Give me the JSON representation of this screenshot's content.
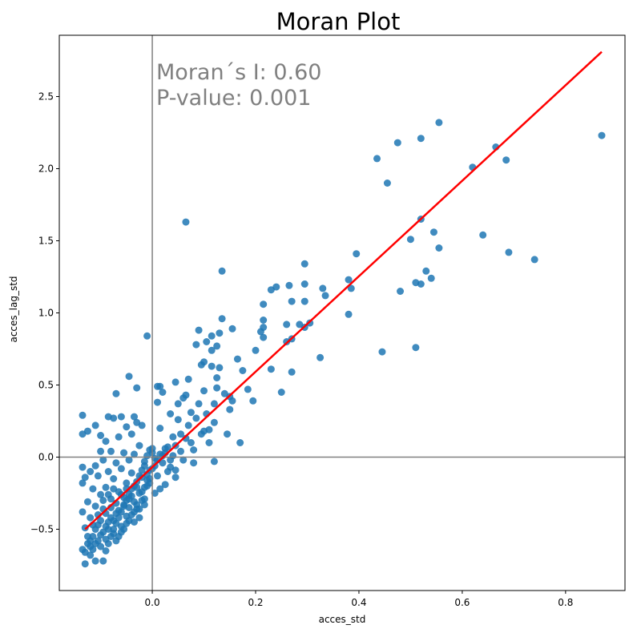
{
  "chart_data": {
    "type": "scatter",
    "title": "Moran Plot",
    "xlabel": "acces_std",
    "ylabel": "acces_lag_std",
    "xlim": [
      -0.18,
      0.915
    ],
    "ylim": [
      -0.925,
      2.925
    ],
    "xticks": [
      0.0,
      0.2,
      0.4,
      0.6,
      0.8
    ],
    "xtick_labels": [
      "0.0",
      "0.2",
      "0.4",
      "0.6",
      "0.8"
    ],
    "yticks": [
      -0.5,
      0.0,
      0.5,
      1.0,
      1.5,
      2.0,
      2.5
    ],
    "ytick_labels": [
      "−0.5",
      "0.0",
      "0.5",
      "1.0",
      "1.5",
      "2.0",
      "2.5"
    ],
    "reference_lines": {
      "vertical_x": 0.0,
      "horizontal_y": 0.0,
      "color": "#808080"
    },
    "annotations": [
      "Moran´s I: 0.60",
      "P-value: 0.001"
    ],
    "regression_line": {
      "x": [
        -0.13,
        0.87
      ],
      "y": [
        -0.5,
        2.81
      ],
      "color": "#ff0000"
    },
    "point_color": "#1f77b4",
    "points": [
      [
        0.87,
        2.23
      ],
      [
        0.74,
        1.37
      ],
      [
        0.69,
        1.42
      ],
      [
        0.685,
        2.06
      ],
      [
        0.665,
        2.15
      ],
      [
        0.64,
        1.54
      ],
      [
        0.62,
        2.01
      ],
      [
        0.555,
        2.32
      ],
      [
        0.555,
        1.45
      ],
      [
        0.545,
        1.56
      ],
      [
        0.54,
        1.24
      ],
      [
        0.53,
        1.29
      ],
      [
        0.52,
        2.21
      ],
      [
        0.52,
        1.65
      ],
      [
        0.52,
        1.2
      ],
      [
        0.51,
        1.21
      ],
      [
        0.51,
        0.76
      ],
      [
        0.5,
        1.51
      ],
      [
        0.48,
        1.15
      ],
      [
        0.475,
        2.18
      ],
      [
        0.455,
        1.9
      ],
      [
        0.445,
        0.73
      ],
      [
        0.435,
        2.07
      ],
      [
        0.395,
        1.41
      ],
      [
        0.385,
        1.17
      ],
      [
        0.38,
        1.23
      ],
      [
        0.38,
        0.99
      ],
      [
        0.335,
        1.12
      ],
      [
        0.33,
        1.17
      ],
      [
        0.325,
        0.69
      ],
      [
        0.305,
        0.93
      ],
      [
        0.295,
        1.34
      ],
      [
        0.295,
        1.2
      ],
      [
        0.295,
        1.08
      ],
      [
        0.295,
        0.9
      ],
      [
        0.285,
        0.92
      ],
      [
        0.27,
        1.08
      ],
      [
        0.27,
        0.82
      ],
      [
        0.27,
        0.59
      ],
      [
        0.265,
        1.19
      ],
      [
        0.26,
        0.92
      ],
      [
        0.26,
        0.8
      ],
      [
        0.25,
        0.45
      ],
      [
        0.24,
        1.18
      ],
      [
        0.23,
        1.16
      ],
      [
        0.23,
        0.61
      ],
      [
        0.215,
        1.06
      ],
      [
        0.215,
        0.95
      ],
      [
        0.215,
        0.9
      ],
      [
        0.215,
        0.83
      ],
      [
        0.21,
        0.87
      ],
      [
        0.2,
        0.74
      ],
      [
        0.195,
        0.39
      ],
      [
        0.185,
        0.47
      ],
      [
        0.175,
        0.6
      ],
      [
        0.17,
        0.1
      ],
      [
        0.165,
        0.68
      ],
      [
        0.155,
        0.89
      ],
      [
        0.155,
        0.39
      ],
      [
        0.15,
        0.42
      ],
      [
        0.15,
        0.33
      ],
      [
        0.145,
        0.16
      ],
      [
        0.14,
        0.44
      ],
      [
        0.135,
        1.29
      ],
      [
        0.135,
        0.96
      ],
      [
        0.13,
        0.86
      ],
      [
        0.13,
        0.62
      ],
      [
        0.125,
        0.77
      ],
      [
        0.125,
        0.55
      ],
      [
        0.125,
        0.48
      ],
      [
        0.12,
        0.37
      ],
      [
        0.12,
        0.24
      ],
      [
        0.12,
        -0.03
      ],
      [
        0.115,
        0.63
      ],
      [
        0.115,
        0.74
      ],
      [
        0.115,
        0.84
      ],
      [
        0.11,
        0.19
      ],
      [
        0.11,
        0.1
      ],
      [
        0.105,
        0.8
      ],
      [
        0.105,
        0.3
      ],
      [
        0.1,
        0.66
      ],
      [
        0.1,
        0.46
      ],
      [
        0.1,
        0.18
      ],
      [
        0.095,
        0.64
      ],
      [
        0.095,
        0.16
      ],
      [
        0.09,
        0.88
      ],
      [
        0.09,
        0.37
      ],
      [
        0.085,
        0.78
      ],
      [
        0.085,
        0.27
      ],
      [
        0.08,
        0.05
      ],
      [
        0.08,
        -0.04
      ],
      [
        0.075,
        0.31
      ],
      [
        0.075,
        0.1
      ],
      [
        0.07,
        0.54
      ],
      [
        0.07,
        0.22
      ],
      [
        0.065,
        1.63
      ],
      [
        0.065,
        0.43
      ],
      [
        0.065,
        0.13
      ],
      [
        0.06,
        0.41
      ],
      [
        0.06,
        -0.02
      ],
      [
        0.055,
        0.16
      ],
      [
        0.055,
        0.04
      ],
      [
        0.05,
        0.26
      ],
      [
        0.05,
        0.37
      ],
      [
        0.045,
        0.52
      ],
      [
        0.045,
        0.08
      ],
      [
        0.045,
        -0.14
      ],
      [
        0.04,
        0.14
      ],
      [
        0.04,
        0.01
      ],
      [
        0.035,
        0.3
      ],
      [
        0.035,
        -0.07
      ],
      [
        0.03,
        0.07
      ],
      [
        0.03,
        -0.1
      ],
      [
        0.025,
        0.06
      ],
      [
        0.025,
        -0.19
      ],
      [
        0.02,
        0.45
      ],
      [
        0.02,
        0.01
      ],
      [
        0.02,
        -0.04
      ],
      [
        0.015,
        0.49
      ],
      [
        0.015,
        0.2
      ],
      [
        0.015,
        -0.22
      ],
      [
        0.01,
        0.49
      ],
      [
        0.01,
        0.38
      ],
      [
        0.01,
        -0.13
      ],
      [
        0.005,
        -0.01
      ],
      [
        0.005,
        -0.25
      ],
      [
        0.0,
        0.06
      ],
      [
        0.0,
        0.03
      ],
      [
        0.0,
        -0.08
      ],
      [
        -0.005,
        0.05
      ],
      [
        -0.005,
        -0.18
      ],
      [
        -0.01,
        0.84
      ],
      [
        -0.01,
        0.01
      ],
      [
        -0.01,
        -0.16
      ],
      [
        -0.015,
        -0.03
      ],
      [
        -0.015,
        -0.29
      ],
      [
        -0.02,
        0.22
      ],
      [
        -0.02,
        -0.14
      ],
      [
        -0.025,
        0.08
      ],
      [
        -0.025,
        -0.36
      ],
      [
        -0.03,
        0.48
      ],
      [
        -0.03,
        0.24
      ],
      [
        -0.03,
        -0.21
      ],
      [
        -0.035,
        0.28
      ],
      [
        -0.035,
        0.02
      ],
      [
        -0.035,
        -0.45
      ],
      [
        -0.04,
        0.16
      ],
      [
        -0.04,
        -0.11
      ],
      [
        -0.045,
        0.56
      ],
      [
        -0.045,
        -0.02
      ],
      [
        -0.045,
        -0.29
      ],
      [
        -0.05,
        0.21
      ],
      [
        -0.05,
        -0.18
      ],
      [
        -0.05,
        -0.41
      ],
      [
        -0.055,
        0.03
      ],
      [
        -0.055,
        -0.33
      ],
      [
        -0.06,
        0.28
      ],
      [
        -0.06,
        -0.08
      ],
      [
        -0.06,
        -0.48
      ],
      [
        -0.065,
        0.14
      ],
      [
        -0.065,
        -0.24
      ],
      [
        -0.07,
        0.44
      ],
      [
        -0.07,
        -0.04
      ],
      [
        -0.07,
        -0.39
      ],
      [
        -0.075,
        0.27
      ],
      [
        -0.075,
        -0.15
      ],
      [
        -0.075,
        -0.53
      ],
      [
        -0.08,
        0.04
      ],
      [
        -0.08,
        -0.29
      ],
      [
        -0.085,
        0.28
      ],
      [
        -0.085,
        -0.1
      ],
      [
        -0.085,
        -0.45
      ],
      [
        -0.09,
        0.11
      ],
      [
        -0.09,
        -0.21
      ],
      [
        -0.09,
        -0.57
      ],
      [
        -0.095,
        -0.02
      ],
      [
        -0.095,
        -0.36
      ],
      [
        -0.1,
        0.04
      ],
      [
        -0.1,
        -0.26
      ],
      [
        -0.1,
        -0.62
      ],
      [
        -0.105,
        -0.13
      ],
      [
        -0.105,
        -0.47
      ],
      [
        -0.11,
        -0.06
      ],
      [
        -0.11,
        -0.34
      ],
      [
        -0.11,
        -0.72
      ],
      [
        -0.115,
        -0.22
      ],
      [
        -0.115,
        -0.55
      ],
      [
        -0.12,
        -0.1
      ],
      [
        -0.12,
        -0.42
      ],
      [
        -0.12,
        -0.68
      ],
      [
        -0.125,
        0.18
      ],
      [
        -0.125,
        -0.31
      ],
      [
        -0.125,
        -0.6
      ],
      [
        -0.13,
        -0.14
      ],
      [
        -0.13,
        -0.49
      ],
      [
        -0.13,
        -0.74
      ],
      [
        -0.135,
        0.29
      ],
      [
        -0.135,
        0.16
      ],
      [
        -0.135,
        -0.07
      ],
      [
        -0.135,
        -0.18
      ],
      [
        -0.135,
        -0.38
      ],
      [
        -0.135,
        -0.64
      ],
      [
        -0.11,
        0.22
      ],
      [
        -0.1,
        0.15
      ],
      [
        -0.095,
        -0.72
      ],
      [
        -0.09,
        -0.65
      ],
      [
        -0.085,
        -0.6
      ],
      [
        -0.08,
        -0.55
      ],
      [
        -0.075,
        -0.5
      ],
      [
        -0.07,
        -0.46
      ],
      [
        -0.065,
        -0.42
      ],
      [
        -0.06,
        -0.38
      ],
      [
        -0.055,
        -0.34
      ],
      [
        -0.05,
        -0.3
      ],
      [
        -0.045,
        -0.26
      ],
      [
        -0.04,
        -0.22
      ],
      [
        -0.035,
        -0.2
      ],
      [
        -0.03,
        -0.17
      ],
      [
        -0.025,
        -0.13
      ],
      [
        -0.02,
        -0.09
      ],
      [
        -0.015,
        -0.06
      ],
      [
        -0.01,
        -0.12
      ],
      [
        -0.005,
        -0.09
      ],
      [
        0.005,
        -0.06
      ],
      [
        0.01,
        -0.02
      ],
      [
        0.015,
        0.02
      ],
      [
        0.025,
        0.03
      ],
      [
        0.035,
        -0.02
      ],
      [
        0.045,
        -0.09
      ],
      [
        -0.115,
        -0.64
      ],
      [
        -0.105,
        -0.58
      ],
      [
        -0.095,
        -0.52
      ],
      [
        -0.085,
        -0.5
      ],
      [
        -0.075,
        -0.44
      ],
      [
        -0.065,
        -0.37
      ],
      [
        -0.055,
        -0.28
      ],
      [
        -0.045,
        -0.35
      ],
      [
        -0.035,
        -0.31
      ],
      [
        -0.025,
        -0.25
      ],
      [
        -0.015,
        -0.21
      ],
      [
        -0.005,
        -0.15
      ],
      [
        -0.12,
        -0.58
      ],
      [
        -0.11,
        -0.5
      ],
      [
        -0.1,
        -0.44
      ],
      [
        -0.09,
        -0.39
      ],
      [
        -0.08,
        -0.35
      ],
      [
        -0.07,
        -0.32
      ],
      [
        -0.06,
        -0.26
      ],
      [
        -0.05,
        -0.22
      ],
      [
        -0.04,
        -0.27
      ],
      [
        -0.03,
        -0.33
      ],
      [
        -0.02,
        -0.24
      ],
      [
        -0.01,
        -0.2
      ],
      [
        -0.125,
        -0.55
      ],
      [
        -0.115,
        -0.47
      ],
      [
        -0.105,
        -0.4
      ],
      [
        -0.095,
        -0.3
      ],
      [
        -0.085,
        -0.26
      ],
      [
        -0.075,
        -0.22
      ],
      [
        -0.065,
        -0.55
      ],
      [
        -0.055,
        -0.5
      ],
      [
        -0.045,
        -0.44
      ],
      [
        -0.035,
        -0.38
      ],
      [
        -0.025,
        -0.42
      ],
      [
        -0.015,
        -0.33
      ],
      [
        -0.13,
        -0.66
      ],
      [
        -0.12,
        -0.62
      ],
      [
        -0.11,
        -0.6
      ],
      [
        -0.1,
        -0.54
      ],
      [
        -0.09,
        -0.48
      ],
      [
        -0.08,
        -0.42
      ],
      [
        -0.07,
        -0.58
      ],
      [
        -0.06,
        -0.52
      ],
      [
        -0.05,
        -0.46
      ],
      [
        -0.04,
        -0.4
      ],
      [
        -0.03,
        -0.36
      ],
      [
        -0.02,
        -0.3
      ]
    ]
  }
}
